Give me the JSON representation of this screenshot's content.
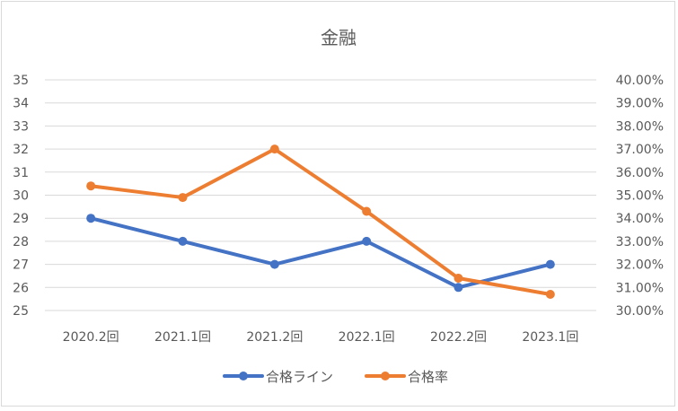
{
  "chart_data": {
    "type": "line",
    "title": "金融",
    "categories": [
      "2020.2回",
      "2021.1回",
      "2021.2回",
      "2022.1回",
      "2022.2回",
      "2023.1回"
    ],
    "y_left": {
      "lim": [
        25,
        35
      ],
      "ticks": [
        25,
        26,
        27,
        28,
        29,
        30,
        31,
        32,
        33,
        34,
        35
      ]
    },
    "y_right": {
      "lim": [
        0.3,
        0.4
      ],
      "tick_labels": [
        "30.00%",
        "31.00%",
        "32.00%",
        "33.00%",
        "34.00%",
        "35.00%",
        "36.00%",
        "37.00%",
        "38.00%",
        "39.00%",
        "40.00%"
      ]
    },
    "series": [
      {
        "name": "合格ライン",
        "axis": "left",
        "color": "#4472c4",
        "values": [
          29,
          28,
          27,
          28,
          26,
          27
        ]
      },
      {
        "name": "合格率",
        "axis": "right",
        "color": "#ed7d31",
        "values": [
          0.354,
          0.349,
          0.37,
          0.343,
          0.314,
          0.307
        ]
      }
    ],
    "grid": true,
    "legend_position": "bottom"
  }
}
